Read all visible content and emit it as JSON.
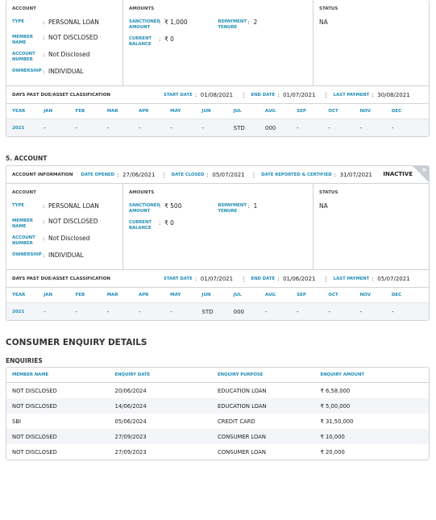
{
  "labels": {
    "account": "ACCOUNT",
    "amounts": "AMOUNTS",
    "status": "STATUS",
    "type": "TYPE",
    "member_name": "MEMBER NAME",
    "account_number": "ACCOUNT NUMBER",
    "ownership": "OWNERSHIP",
    "sanctioned_amount": "SANCTIONED AMOUNT",
    "current_balance": "CURRENT BALANCE",
    "repayment_tenure": "REPAYMENT TENURE",
    "separator": ":",
    "divider": "|",
    "dpd": "DAYS PAST DUE/ASSET CLASSIFICATION",
    "start_date": "START DATE",
    "end_date": "END DATE",
    "last_payment": "LAST PAYMENT",
    "year": "YEAR",
    "months": [
      "JAN",
      "FEB",
      "MAR",
      "APR",
      "MAY",
      "JUN",
      "JUL",
      "AUG",
      "SEP",
      "OCT",
      "NOV",
      "DEC"
    ],
    "account_information": "ACCOUNT INFORMATION",
    "date_opened": "DATE OPENED",
    "date_closed": "DATE CLOSED",
    "date_reported": "DATE REPORTED & CERTIFIED",
    "close_icon": "×"
  },
  "accounts": [
    {
      "type": "PERSONAL LOAN",
      "member_name": "NOT DISCLOSED",
      "account_number": "Not Disclosed",
      "ownership": "INDIVIDUAL",
      "sanctioned_amount": "₹ 1,000",
      "current_balance": "₹ 0",
      "repayment_tenure": "2",
      "status": "NA",
      "start_date": "01/08/2021",
      "end_date": "01/07/2021",
      "last_payment": "30/08/2021",
      "history": {
        "year": "2021",
        "months": [
          "-",
          "-",
          "-",
          "-",
          "-",
          "-",
          "STD",
          "000",
          "-",
          "-",
          "-",
          "-"
        ]
      }
    },
    {
      "title": "5. ACCOUNT",
      "date_opened": "27/06/2021",
      "date_closed": "05/07/2021",
      "date_reported": "31/07/2021",
      "state": "INACTIVE",
      "type": "PERSONAL LOAN",
      "member_name": "NOT DISCLOSED",
      "account_number": "Not Disclosed",
      "ownership": "INDIVIDUAL",
      "sanctioned_amount": "₹ 500",
      "current_balance": "₹ 0",
      "repayment_tenure": "1",
      "status": "NA",
      "start_date": "01/07/2021",
      "end_date": "01/06/2021",
      "last_payment": "05/07/2021",
      "history": {
        "year": "2021",
        "months": [
          "-",
          "-",
          "-",
          "-",
          "-",
          "STD",
          "000",
          "-",
          "-",
          "-",
          "-",
          "-"
        ]
      }
    }
  ],
  "enquiry": {
    "title": "CONSUMER ENQUIRY DETAILS",
    "subtitle": "ENQUIRIES",
    "columns": [
      "MEMBER NAME",
      "ENQUIRY DATE",
      "ENQUIRY PURPOSE",
      "ENQUIRY AMOUNT"
    ],
    "rows": [
      [
        "NOT DISCLOSED",
        "20/06/2024",
        "EDUCATION LOAN",
        "₹ 6,58,000"
      ],
      [
        "NOT DISCLOSED",
        "14/06/2024",
        "EDUCATION LOAN",
        "₹ 5,00,000"
      ],
      [
        "SBI",
        "05/06/2024",
        "CREDIT CARD",
        "₹ 31,50,000"
      ],
      [
        "NOT DISCLOSED",
        "27/09/2023",
        "CONSUMER LOAN",
        "₹ 10,000"
      ],
      [
        "NOT DISCLOSED",
        "27/09/2023",
        "CONSUMER LOAN",
        "₹ 20,000"
      ]
    ]
  }
}
